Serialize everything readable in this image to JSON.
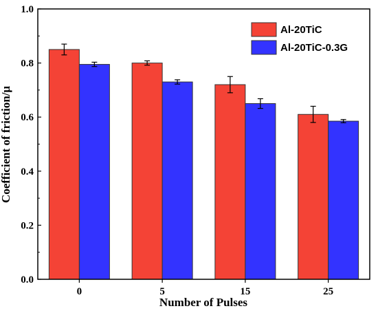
{
  "chart_data": {
    "type": "bar",
    "title": "",
    "xlabel": "Number of Pulses",
    "ylabel": "Coefficient of friction/μ",
    "categories": [
      "0",
      "5",
      "15",
      "25"
    ],
    "ylim": [
      0.0,
      1.0
    ],
    "yticks": [
      "0.0",
      "0.2",
      "0.4",
      "0.6",
      "0.8",
      "1.0"
    ],
    "grid": false,
    "legend_position": "top-right",
    "series": [
      {
        "name": "Al-20TiC",
        "color": "#f44336",
        "values": [
          0.85,
          0.8,
          0.72,
          0.61
        ],
        "errors": [
          0.02,
          0.008,
          0.03,
          0.03
        ]
      },
      {
        "name": "Al-20TiC-0.3G",
        "color": "#3333ff",
        "values": [
          0.795,
          0.73,
          0.65,
          0.585
        ],
        "errors": [
          0.008,
          0.008,
          0.018,
          0.006
        ]
      }
    ]
  }
}
